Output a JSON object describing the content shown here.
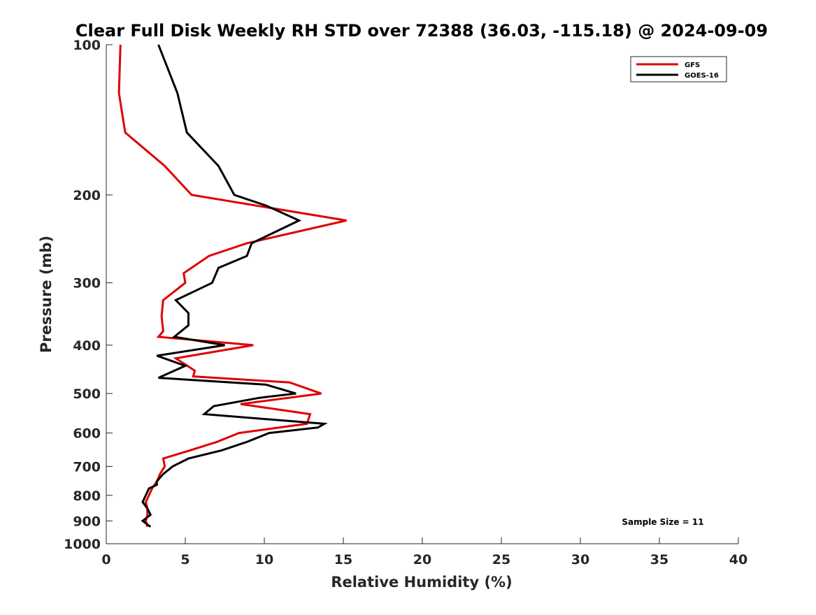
{
  "chart_data": {
    "type": "line",
    "title": "Clear Full Disk Weekly RH STD over 72388 (36.03, -115.18) @ 2024-09-09",
    "xlabel": "Relative Humidity (%)",
    "ylabel": "Pressure (mb)",
    "xlim": [
      0,
      40
    ],
    "ylim": [
      100,
      1000
    ],
    "y_scale": "log",
    "y_reversed": true,
    "grid": false,
    "legend_position": "top-right",
    "x_ticks": [
      0,
      5,
      10,
      15,
      20,
      25,
      30,
      35,
      40
    ],
    "x_tick_labels": [
      "0",
      "5",
      "10",
      "15",
      "20",
      "25",
      "30",
      "35",
      "40"
    ],
    "y_ticks": [
      100,
      200,
      300,
      400,
      500,
      600,
      700,
      800,
      900,
      1000
    ],
    "y_tick_labels": [
      "100",
      "200",
      "300",
      "400",
      "500",
      "600",
      "700",
      "800",
      "900",
      "1000"
    ],
    "annotation": "Sample Size = 11",
    "series": [
      {
        "name": "GFS",
        "color": "#e00000",
        "points": [
          [
            0.9,
            100
          ],
          [
            0.8,
            125
          ],
          [
            1.2,
            150
          ],
          [
            3.7,
            175
          ],
          [
            5.4,
            200
          ],
          [
            15.2,
            225
          ],
          [
            8.9,
            250
          ],
          [
            6.5,
            265
          ],
          [
            4.9,
            287
          ],
          [
            5.0,
            300
          ],
          [
            3.6,
            325
          ],
          [
            3.5,
            350
          ],
          [
            3.6,
            375
          ],
          [
            3.3,
            385
          ],
          [
            9.3,
            400
          ],
          [
            4.4,
            425
          ],
          [
            5.6,
            450
          ],
          [
            5.5,
            462
          ],
          [
            11.6,
            475
          ],
          [
            13.6,
            500
          ],
          [
            8.5,
            525
          ],
          [
            12.9,
            550
          ],
          [
            12.7,
            575
          ],
          [
            8.4,
            600
          ],
          [
            7.0,
            625
          ],
          [
            5.3,
            650
          ],
          [
            3.6,
            675
          ],
          [
            3.7,
            700
          ],
          [
            3.4,
            725
          ],
          [
            3.2,
            750
          ],
          [
            2.9,
            775
          ],
          [
            2.7,
            800
          ],
          [
            2.5,
            825
          ],
          [
            2.6,
            850
          ],
          [
            2.6,
            875
          ],
          [
            2.5,
            900
          ],
          [
            2.6,
            925
          ]
        ]
      },
      {
        "name": "GOES-16",
        "color": "#000000",
        "points": [
          [
            3.3,
            100
          ],
          [
            4.5,
            125
          ],
          [
            5.1,
            150
          ],
          [
            7.1,
            175
          ],
          [
            8.1,
            200
          ],
          [
            10.1,
            210
          ],
          [
            12.2,
            225
          ],
          [
            9.2,
            250
          ],
          [
            8.9,
            265
          ],
          [
            7.1,
            280
          ],
          [
            6.7,
            300
          ],
          [
            4.4,
            325
          ],
          [
            5.2,
            345
          ],
          [
            5.2,
            365
          ],
          [
            4.3,
            385
          ],
          [
            7.5,
            400
          ],
          [
            3.2,
            420
          ],
          [
            5.0,
            440
          ],
          [
            3.3,
            465
          ],
          [
            10.1,
            480
          ],
          [
            12.0,
            500
          ],
          [
            9.7,
            510
          ],
          [
            6.8,
            530
          ],
          [
            6.2,
            550
          ],
          [
            13.8,
            575
          ],
          [
            13.4,
            585
          ],
          [
            10.3,
            600
          ],
          [
            8.9,
            625
          ],
          [
            7.3,
            650
          ],
          [
            5.2,
            675
          ],
          [
            4.2,
            700
          ],
          [
            3.6,
            725
          ],
          [
            3.2,
            750
          ],
          [
            3.2,
            762
          ],
          [
            2.7,
            775
          ],
          [
            2.5,
            800
          ],
          [
            2.3,
            825
          ],
          [
            2.6,
            850
          ],
          [
            2.8,
            875
          ],
          [
            2.3,
            900
          ],
          [
            2.8,
            925
          ]
        ]
      }
    ]
  }
}
